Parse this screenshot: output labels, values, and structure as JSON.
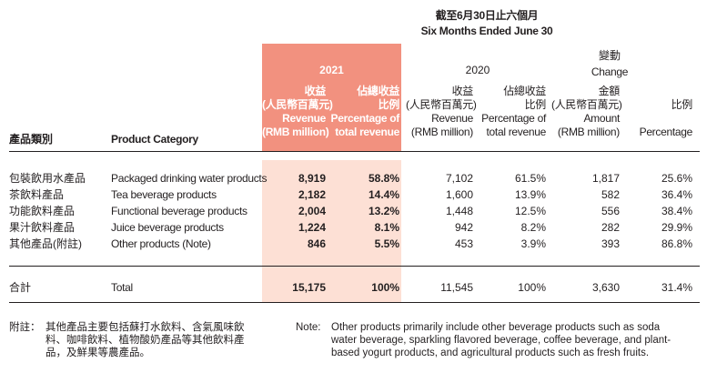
{
  "period": {
    "zh": "截至6月30日止六個月",
    "en": "Six Months Ended June 30"
  },
  "headers": {
    "category_zh": "產品類別",
    "category_en": "Product Category",
    "year_2021": "2021",
    "year_2020": "2020",
    "change_zh": "變動",
    "change_en": "Change",
    "rev_2021": [
      "收益",
      "(人民幣百萬元)",
      "Revenue",
      "(RMB million)"
    ],
    "pct_2021": [
      "佔總收益",
      "比例",
      "Percentage of",
      "total revenue"
    ],
    "rev_2020": [
      "收益",
      "(人民幣百萬元)",
      "Revenue",
      "(RMB million)"
    ],
    "pct_2020": [
      "佔總收益",
      "比例",
      "Percentage of",
      "total revenue"
    ],
    "amount": [
      "金額",
      "(人民幣百萬元)",
      "Amount",
      "(RMB million)"
    ],
    "percentage": [
      "比例",
      "Percentage"
    ]
  },
  "rows": [
    {
      "zh": "包裝飲用水產品",
      "en": "Packaged drinking water products",
      "rev2021": "8,919",
      "pct2021": "58.8%",
      "rev2020": "7,102",
      "pct2020": "61.5%",
      "amount": "1,817",
      "change_pct": "25.6%"
    },
    {
      "zh": "茶飲料產品",
      "en": "Tea beverage products",
      "rev2021": "2,182",
      "pct2021": "14.4%",
      "rev2020": "1,600",
      "pct2020": "13.9%",
      "amount": "582",
      "change_pct": "36.4%"
    },
    {
      "zh": "功能飲料產品",
      "en": "Functional beverage products",
      "rev2021": "2,004",
      "pct2021": "13.2%",
      "rev2020": "1,448",
      "pct2020": "12.5%",
      "amount": "556",
      "change_pct": "38.4%"
    },
    {
      "zh": "果汁飲料產品",
      "en": "Juice beverage products",
      "rev2021": "1,224",
      "pct2021": "8.1%",
      "rev2020": "942",
      "pct2020": "8.2%",
      "amount": "282",
      "change_pct": "29.9%"
    },
    {
      "zh": "其他產品(附註)",
      "en": "Other products (Note)",
      "rev2021": "846",
      "pct2021": "5.5%",
      "rev2020": "453",
      "pct2020": "3.9%",
      "amount": "393",
      "change_pct": "86.8%"
    }
  ],
  "total": {
    "zh": "合計",
    "en": "Total",
    "rev2021": "15,175",
    "pct2021": "100%",
    "rev2020": "11,545",
    "pct2020": "100%",
    "amount": "3,630",
    "change_pct": "31.4%"
  },
  "note": {
    "zh_label": "附註：",
    "zh_lines": [
      "其他產品主要包括蘇打水飲料、含氣風味飲",
      "料、咖啡飲料、植物酸奶產品等其他飲料產",
      "品，及鮮果等農產品。"
    ],
    "en_label": "Note:",
    "en_lines": [
      "Other products primarily include other beverage products such as soda",
      "water beverage, sparkling flavored beverage, coffee beverage, and plant-",
      "based yogurt products, and agricultural products such as fresh fruits."
    ]
  },
  "colors": {
    "highlight_header": "#f2917f",
    "highlight_body": "#fde0d5"
  }
}
